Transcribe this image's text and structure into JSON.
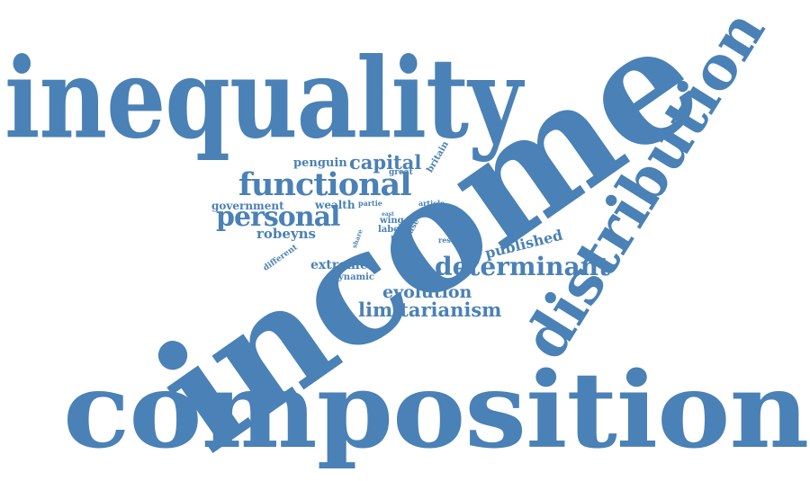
{
  "accent_color": "#4a81b6",
  "words": [
    {
      "id": "inequality",
      "text": "inequality"
    },
    {
      "id": "income",
      "text": "income"
    },
    {
      "id": "composition",
      "text": "composition"
    },
    {
      "id": "distribution",
      "text": "distribution"
    },
    {
      "id": "functional",
      "text": "functional"
    },
    {
      "id": "personal",
      "text": "personal"
    },
    {
      "id": "capital",
      "text": "capital"
    },
    {
      "id": "penguin",
      "text": "penguin"
    },
    {
      "id": "great",
      "text": "great"
    },
    {
      "id": "britain",
      "text": "britain"
    },
    {
      "id": "government",
      "text": "government"
    },
    {
      "id": "wealth",
      "text": "wealth"
    },
    {
      "id": "partie",
      "text": "partie"
    },
    {
      "id": "article",
      "text": "article"
    },
    {
      "id": "robeyns",
      "text": "robeyns"
    },
    {
      "id": "wing",
      "text": "wing"
    },
    {
      "id": "labor",
      "text": "labor"
    },
    {
      "id": "case",
      "text": "case"
    },
    {
      "id": "lane",
      "text": "lane"
    },
    {
      "id": "book",
      "text": "book"
    },
    {
      "id": "result",
      "text": "result"
    },
    {
      "id": "share",
      "text": "share"
    },
    {
      "id": "different",
      "text": "different"
    },
    {
      "id": "extreme",
      "text": "extreme"
    },
    {
      "id": "dynamic",
      "text": "dynamic"
    },
    {
      "id": "published",
      "text": "published"
    },
    {
      "id": "determinant",
      "text": "determinant"
    },
    {
      "id": "evolution",
      "text": "evolution"
    },
    {
      "id": "limitarianism",
      "text": "limitarianism"
    },
    {
      "id": "east",
      "text": "east"
    }
  ]
}
